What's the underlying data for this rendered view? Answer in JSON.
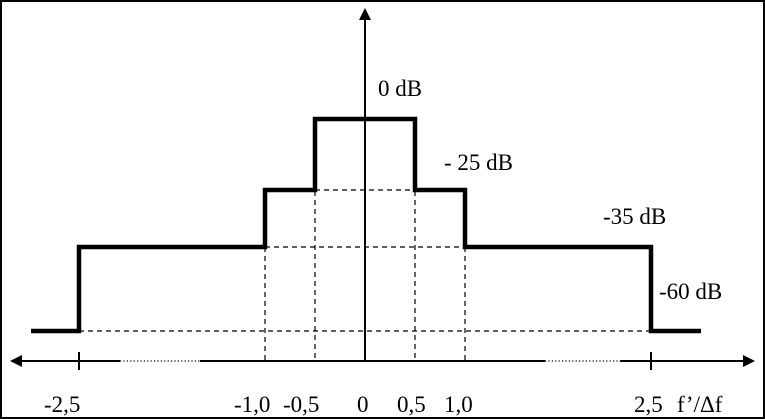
{
  "chart_data": {
    "type": "line",
    "title": "",
    "xlabel": "f’/Δf",
    "ylabel": "",
    "x_ticks": [
      "-2,5",
      "-1,0",
      "-0,5",
      "0",
      "0,5",
      "1,0",
      "2,5"
    ],
    "level_labels": [
      "0 dB",
      "- 25 dB",
      "-35 dB",
      "-60 dB"
    ],
    "series": [
      {
        "x": [
          -2.5,
          -2.5,
          -1.0,
          -1.0,
          -0.5,
          -0.5,
          0.5,
          0.5,
          1.0,
          1.0,
          2.5,
          2.5
        ],
        "y": [
          -60,
          -35,
          -35,
          -25,
          -25,
          0,
          0,
          -25,
          -25,
          -35,
          -35,
          -60
        ]
      }
    ],
    "reference_levels_db": [
      -60,
      -35,
      -25
    ],
    "reference_verticals": [
      -1.0,
      -0.5,
      0.5,
      1.0
    ]
  }
}
